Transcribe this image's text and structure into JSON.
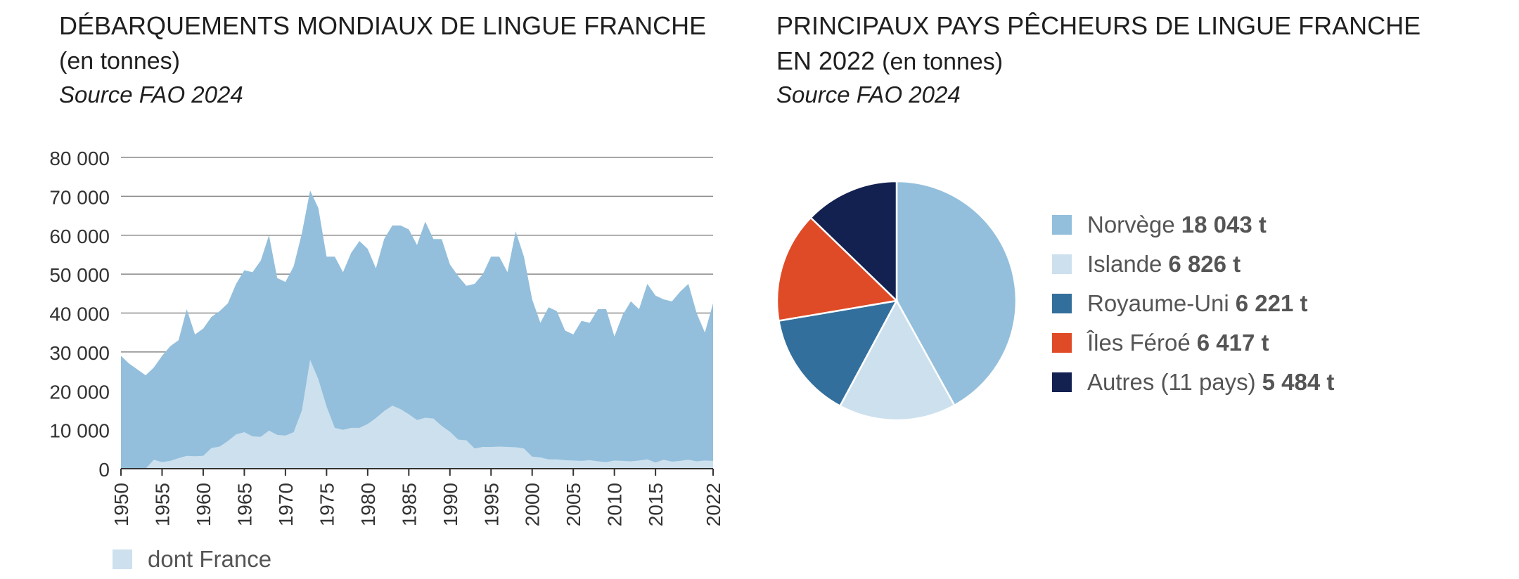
{
  "left": {
    "title_main": "DÉBARQUEMENTS MONDIAUX DE LINGUE FRANCHE",
    "title_unit": "(en tonnes)",
    "source": "Source FAO 2024",
    "legend_label": "dont France",
    "colors": {
      "world": "#93bfdc",
      "france": "#cde0ee"
    }
  },
  "right": {
    "title_main_line1": "PRINCIPAUX PAYS PÊCHEURS DE LINGUE FRANCHE",
    "title_main_line2": "EN 2022",
    "title_unit": "(en tonnes)",
    "source": "Source FAO 2024"
  },
  "chart_data": [
    {
      "type": "area",
      "title": "DÉBARQUEMENTS MONDIAUX DE LINGUE FRANCHE (en tonnes)",
      "ylim": [
        0,
        80000
      ],
      "xlim": [
        1950,
        2022
      ],
      "grid": true,
      "legend": "bottom-left",
      "y_ticks": [
        0,
        10000,
        20000,
        30000,
        40000,
        50000,
        60000,
        70000,
        80000
      ],
      "y_tick_labels": [
        "0",
        "10 000",
        "20 000",
        "30 000",
        "40 000",
        "50 000",
        "60 000",
        "70 000",
        "80 000"
      ],
      "x_ticks": [
        1950,
        1955,
        1960,
        1965,
        1970,
        1975,
        1980,
        1985,
        1990,
        1995,
        2000,
        2005,
        2010,
        2015,
        2022
      ],
      "x_tick_labels": [
        "1950",
        "1955",
        "1960",
        "1965",
        "1970",
        "1975",
        "1980",
        "1985",
        "1990",
        "1995",
        "2000",
        "2005",
        "2010",
        "2015",
        "2022"
      ],
      "x": [
        1950,
        1951,
        1952,
        1953,
        1954,
        1955,
        1956,
        1957,
        1958,
        1959,
        1960,
        1961,
        1962,
        1963,
        1964,
        1965,
        1966,
        1967,
        1968,
        1969,
        1970,
        1971,
        1972,
        1973,
        1974,
        1975,
        1976,
        1977,
        1978,
        1979,
        1980,
        1981,
        1982,
        1983,
        1984,
        1985,
        1986,
        1987,
        1988,
        1989,
        1990,
        1991,
        1992,
        1993,
        1994,
        1995,
        1996,
        1997,
        1998,
        1999,
        2000,
        2001,
        2002,
        2003,
        2004,
        2005,
        2006,
        2007,
        2008,
        2009,
        2010,
        2011,
        2012,
        2013,
        2014,
        2015,
        2016,
        2017,
        2018,
        2019,
        2020,
        2021,
        2022
      ],
      "series": [
        {
          "values": [
            29000,
            27000,
            25500,
            24000,
            26000,
            29000,
            31500,
            33000,
            41000,
            34500,
            36000,
            39000,
            40500,
            42500,
            47500,
            51000,
            50500,
            53500,
            60000,
            49000,
            48000,
            52000,
            60500,
            71500,
            67000,
            54500,
            54500,
            50500,
            55500,
            58500,
            56500,
            51500,
            59000,
            62500,
            62500,
            61500,
            57500,
            63500,
            59000,
            59000,
            52500,
            49500,
            47000,
            47500,
            50000,
            54500,
            54500,
            50500,
            61000,
            54500,
            43500,
            37500,
            41500,
            40500,
            35500,
            34500,
            38000,
            37500,
            41000,
            41000,
            34000,
            39500,
            43000,
            41000,
            47500,
            44500,
            43500,
            43000,
            45500,
            47500,
            40000,
            35000,
            42500
          ]
        },
        {
          "name": "dont France",
          "values": [
            0,
            0,
            0,
            0,
            2300,
            1700,
            2000,
            2700,
            3300,
            3200,
            3300,
            5300,
            5700,
            7100,
            8800,
            9400,
            8300,
            8200,
            9800,
            8700,
            8500,
            9400,
            15000,
            28000,
            23000,
            16000,
            10500,
            10000,
            10500,
            10500,
            11500,
            13000,
            14800,
            16200,
            15300,
            14000,
            12500,
            13100,
            12900,
            11000,
            9500,
            7500,
            7300,
            5200,
            5600,
            5600,
            5700,
            5600,
            5500,
            5200,
            3100,
            2900,
            2400,
            2400,
            2200,
            2100,
            2000,
            2200,
            1900,
            1700,
            2100,
            2000,
            1900,
            2100,
            2400,
            1600,
            2300,
            1800,
            2000,
            2300,
            1900,
            2100,
            2000
          ]
        }
      ]
    },
    {
      "type": "pie",
      "title": "PRINCIPAUX PAYS PÊCHEURS DE LINGUE FRANCHE EN 2022 (en tonnes)",
      "legend": "right",
      "slices": [
        {
          "label": "Norvège",
          "value": 18043,
          "value_text": "18 043 t",
          "color": "#93bfdc"
        },
        {
          "label": "Islande",
          "value": 6826,
          "value_text": "6 826 t",
          "color": "#cde0ee"
        },
        {
          "label": "Royaume-Uni",
          "value": 6221,
          "value_text": "6 221 t",
          "color": "#336f9c"
        },
        {
          "label": "Îles Féroé",
          "value": 6417,
          "value_text": "6 417 t",
          "color": "#df4b26"
        },
        {
          "label": "Autres (11 pays)",
          "value": 5484,
          "value_text": "5 484 t",
          "color": "#132150"
        }
      ]
    }
  ]
}
